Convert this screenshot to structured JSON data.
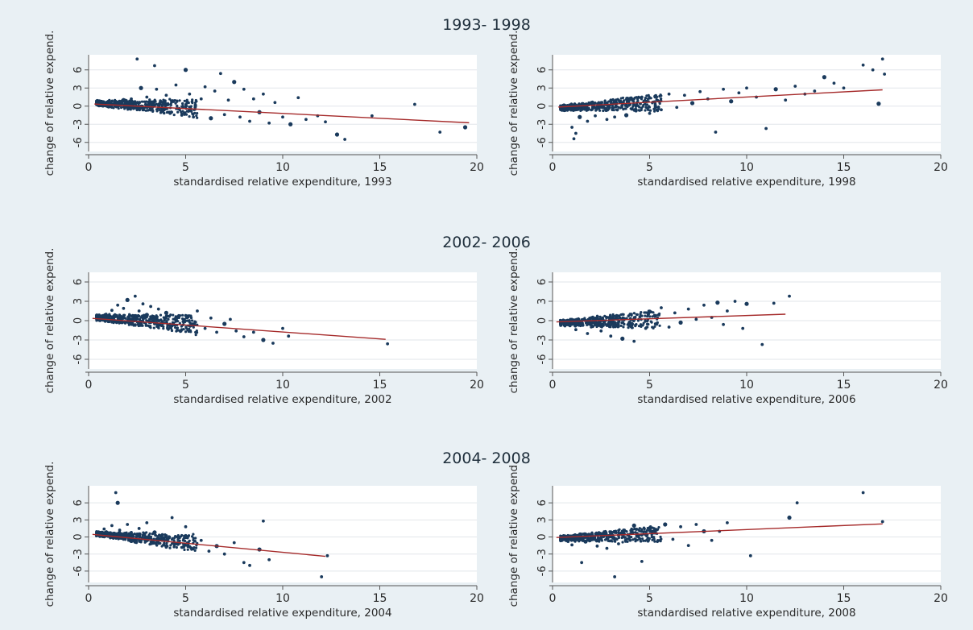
{
  "figure": {
    "background": "#e9f0f4",
    "plot_background": "#ffffff",
    "marker_color": "#1a3a5c",
    "fit_color": "#a52a2a",
    "grid_color": "#e2e6ea"
  },
  "rows": [
    {
      "title": "1993- 1998"
    },
    {
      "title": "2002- 2006"
    },
    {
      "title": "2004- 2008"
    }
  ],
  "chart_data": [
    {
      "type": "scatter",
      "title": "",
      "xlabel": "standardised relative expenditure, 1993",
      "ylabel": "change of relative expend.",
      "xlim": [
        0,
        20
      ],
      "ylim": [
        -7.5,
        8.5
      ],
      "xticks": [
        0,
        5,
        10,
        15,
        20
      ],
      "yticks": [
        6,
        3,
        0,
        -3,
        -6
      ],
      "grid": "horizontal",
      "fit_line": {
        "x": [
          0.3,
          19.6
        ],
        "y": [
          0.35,
          -2.75
        ]
      },
      "points": [
        [
          0.5,
          0.4
        ],
        [
          0.8,
          0.6
        ],
        [
          1.0,
          0.3
        ],
        [
          1.2,
          0.8
        ],
        [
          1.5,
          0.5
        ],
        [
          1.8,
          1.0
        ],
        [
          2.0,
          0.2
        ],
        [
          2.2,
          1.2
        ],
        [
          2.4,
          -0.3
        ],
        [
          2.5,
          7.8
        ],
        [
          2.7,
          3.0
        ],
        [
          3.0,
          1.5
        ],
        [
          3.2,
          -0.6
        ],
        [
          3.4,
          6.7
        ],
        [
          3.5,
          2.8
        ],
        [
          3.8,
          -0.8
        ],
        [
          4.0,
          1.8
        ],
        [
          4.2,
          -1.2
        ],
        [
          4.5,
          3.5
        ],
        [
          4.8,
          -1.5
        ],
        [
          5.0,
          6.0
        ],
        [
          5.2,
          2.0
        ],
        [
          5.4,
          -1.8
        ],
        [
          5.8,
          1.2
        ],
        [
          6.0,
          3.2
        ],
        [
          6.3,
          -2.0
        ],
        [
          6.5,
          2.5
        ],
        [
          6.8,
          5.4
        ],
        [
          7.0,
          -1.4
        ],
        [
          7.2,
          1.0
        ],
        [
          7.5,
          4.0
        ],
        [
          7.8,
          -1.8
        ],
        [
          8.0,
          2.8
        ],
        [
          8.3,
          -2.5
        ],
        [
          8.5,
          1.2
        ],
        [
          8.8,
          -1.0
        ],
        [
          9.0,
          2.0
        ],
        [
          9.3,
          -2.8
        ],
        [
          9.6,
          0.6
        ],
        [
          10.0,
          -1.8
        ],
        [
          10.4,
          -3.0
        ],
        [
          10.8,
          1.4
        ],
        [
          11.2,
          -2.2
        ],
        [
          11.8,
          -1.6
        ],
        [
          12.2,
          -2.6
        ],
        [
          12.8,
          -4.7
        ],
        [
          13.2,
          -5.5
        ],
        [
          14.6,
          -1.6
        ],
        [
          16.8,
          0.3
        ],
        [
          18.1,
          -4.3
        ],
        [
          19.4,
          -3.5
        ]
      ]
    },
    {
      "type": "scatter",
      "title": "",
      "xlabel": "standardised relative expenditure, 1998",
      "ylabel": "change of relative expend.",
      "xlim": [
        0,
        20
      ],
      "ylim": [
        -7.5,
        8.5
      ],
      "xticks": [
        0,
        5,
        10,
        15,
        20
      ],
      "yticks": [
        6,
        3,
        0,
        -3,
        -6
      ],
      "grid": "horizontal",
      "fit_line": {
        "x": [
          0.3,
          17.0
        ],
        "y": [
          -0.15,
          2.7
        ]
      },
      "points": [
        [
          0.6,
          -0.2
        ],
        [
          0.9,
          -0.5
        ],
        [
          1.0,
          -3.5
        ],
        [
          1.1,
          -5.4
        ],
        [
          1.2,
          -4.5
        ],
        [
          1.4,
          -1.8
        ],
        [
          1.6,
          0.3
        ],
        [
          1.8,
          -2.5
        ],
        [
          2.0,
          0.4
        ],
        [
          2.2,
          -1.6
        ],
        [
          2.5,
          0.5
        ],
        [
          2.8,
          -2.2
        ],
        [
          3.0,
          1.0
        ],
        [
          3.2,
          -1.8
        ],
        [
          3.5,
          0.8
        ],
        [
          3.8,
          -1.5
        ],
        [
          4.0,
          1.2
        ],
        [
          4.3,
          -0.8
        ],
        [
          4.6,
          1.5
        ],
        [
          5.0,
          -1.2
        ],
        [
          5.3,
          1.6
        ],
        [
          5.6,
          -0.6
        ],
        [
          6.0,
          2.0
        ],
        [
          6.4,
          -0.2
        ],
        [
          6.8,
          1.8
        ],
        [
          7.2,
          0.5
        ],
        [
          7.6,
          2.4
        ],
        [
          8.0,
          1.2
        ],
        [
          8.4,
          -4.3
        ],
        [
          8.8,
          2.8
        ],
        [
          9.2,
          0.8
        ],
        [
          9.6,
          2.2
        ],
        [
          10.0,
          3.0
        ],
        [
          10.5,
          1.5
        ],
        [
          11.0,
          -3.7
        ],
        [
          11.5,
          2.8
        ],
        [
          12.0,
          1.0
        ],
        [
          12.5,
          3.3
        ],
        [
          13.0,
          2.0
        ],
        [
          13.5,
          2.5
        ],
        [
          14.0,
          4.8
        ],
        [
          14.5,
          3.8
        ],
        [
          15.0,
          3.0
        ],
        [
          16.0,
          6.8
        ],
        [
          16.5,
          6.0
        ],
        [
          16.8,
          0.4
        ],
        [
          17.0,
          7.8
        ],
        [
          17.1,
          5.3
        ]
      ]
    },
    {
      "type": "scatter",
      "title": "",
      "xlabel": "standardised relative expenditure, 2002",
      "ylabel": "change of relative expend.",
      "xlim": [
        0,
        20
      ],
      "ylim": [
        -7.5,
        7.5
      ],
      "xticks": [
        0,
        5,
        10,
        15,
        20
      ],
      "yticks": [
        6,
        3,
        0,
        -3,
        -6
      ],
      "grid": "horizontal",
      "fit_line": {
        "x": [
          0.2,
          15.3
        ],
        "y": [
          0.35,
          -2.9
        ]
      },
      "points": [
        [
          0.6,
          0.5
        ],
        [
          0.9,
          1.0
        ],
        [
          1.2,
          1.6
        ],
        [
          1.5,
          2.4
        ],
        [
          1.8,
          1.9
        ],
        [
          2.0,
          3.2
        ],
        [
          2.2,
          0.2
        ],
        [
          2.4,
          3.8
        ],
        [
          2.6,
          1.5
        ],
        [
          2.8,
          2.6
        ],
        [
          3.0,
          0.9
        ],
        [
          3.2,
          2.2
        ],
        [
          3.4,
          -0.5
        ],
        [
          3.6,
          1.8
        ],
        [
          3.8,
          -0.2
        ],
        [
          4.0,
          1.2
        ],
        [
          4.2,
          -1.0
        ],
        [
          4.5,
          0.6
        ],
        [
          4.8,
          -1.4
        ],
        [
          5.0,
          0.8
        ],
        [
          5.3,
          -0.6
        ],
        [
          5.6,
          1.5
        ],
        [
          6.0,
          -1.2
        ],
        [
          6.3,
          0.4
        ],
        [
          6.6,
          -1.8
        ],
        [
          7.0,
          -0.5
        ],
        [
          7.3,
          0.2
        ],
        [
          7.6,
          -1.6
        ],
        [
          8.0,
          -2.5
        ],
        [
          8.5,
          -1.8
        ],
        [
          9.0,
          -3.0
        ],
        [
          9.5,
          -3.5
        ],
        [
          10.0,
          -1.2
        ],
        [
          10.3,
          -2.4
        ],
        [
          15.4,
          -3.6
        ]
      ]
    },
    {
      "type": "scatter",
      "title": "",
      "xlabel": "standardised relative expenditure, 2006",
      "ylabel": "change of relative expend.",
      "xlim": [
        0,
        20
      ],
      "ylim": [
        -7.5,
        7.5
      ],
      "xticks": [
        0,
        5,
        10,
        15,
        20
      ],
      "yticks": [
        6,
        3,
        0,
        -3,
        -6
      ],
      "grid": "horizontal",
      "fit_line": {
        "x": [
          0.2,
          12.0
        ],
        "y": [
          -0.2,
          1.0
        ]
      },
      "points": [
        [
          0.5,
          -0.2
        ],
        [
          0.9,
          -0.8
        ],
        [
          1.2,
          -1.4
        ],
        [
          1.5,
          -0.3
        ],
        [
          1.8,
          -2.0
        ],
        [
          2.2,
          0.3
        ],
        [
          2.5,
          -1.6
        ],
        [
          2.8,
          0.5
        ],
        [
          3.0,
          -2.4
        ],
        [
          3.3,
          0.8
        ],
        [
          3.6,
          -2.8
        ],
        [
          4.0,
          1.0
        ],
        [
          4.2,
          -3.2
        ],
        [
          4.5,
          0.6
        ],
        [
          4.8,
          -1.2
        ],
        [
          5.0,
          1.4
        ],
        [
          5.3,
          -0.5
        ],
        [
          5.6,
          2.0
        ],
        [
          6.0,
          -1.0
        ],
        [
          6.3,
          1.2
        ],
        [
          6.6,
          -0.3
        ],
        [
          7.0,
          1.8
        ],
        [
          7.4,
          0.2
        ],
        [
          7.8,
          2.4
        ],
        [
          8.2,
          0.5
        ],
        [
          8.5,
          2.8
        ],
        [
          8.8,
          -0.6
        ],
        [
          9.0,
          1.5
        ],
        [
          9.4,
          3.0
        ],
        [
          9.8,
          -1.2
        ],
        [
          10.0,
          2.6
        ],
        [
          10.8,
          -3.7
        ],
        [
          11.4,
          2.7
        ],
        [
          12.2,
          3.8
        ]
      ]
    },
    {
      "type": "scatter",
      "title": "",
      "xlabel": "standardised relative expenditure, 2004",
      "ylabel": "change of relative expend.",
      "xlim": [
        0,
        20
      ],
      "ylim": [
        -8.0,
        9.0
      ],
      "xticks": [
        0,
        5,
        10,
        15,
        20
      ],
      "yticks": [
        6,
        3,
        0,
        -3,
        -6
      ],
      "grid": "horizontal",
      "fit_line": {
        "x": [
          0.2,
          12.2
        ],
        "y": [
          0.45,
          -3.4
        ]
      },
      "points": [
        [
          0.5,
          0.8
        ],
        [
          0.8,
          1.4
        ],
        [
          1.0,
          0.5
        ],
        [
          1.2,
          2.0
        ],
        [
          1.4,
          7.8
        ],
        [
          1.5,
          6.0
        ],
        [
          1.6,
          1.2
        ],
        [
          1.8,
          -0.4
        ],
        [
          2.0,
          2.2
        ],
        [
          2.2,
          0.8
        ],
        [
          2.4,
          -0.8
        ],
        [
          2.6,
          1.5
        ],
        [
          2.8,
          -0.3
        ],
        [
          3.0,
          2.5
        ],
        [
          3.2,
          -1.2
        ],
        [
          3.4,
          0.8
        ],
        [
          3.6,
          -1.0
        ],
        [
          3.8,
          0.4
        ],
        [
          4.0,
          -1.8
        ],
        [
          4.3,
          3.4
        ],
        [
          4.6,
          -1.2
        ],
        [
          5.0,
          1.8
        ],
        [
          5.3,
          -2.0
        ],
        [
          5.8,
          -0.6
        ],
        [
          6.2,
          -2.5
        ],
        [
          6.6,
          -1.6
        ],
        [
          7.0,
          -3.0
        ],
        [
          7.5,
          -1.0
        ],
        [
          8.0,
          -4.5
        ],
        [
          8.3,
          -5.0
        ],
        [
          8.8,
          -2.2
        ],
        [
          9.0,
          2.8
        ],
        [
          9.3,
          -4.0
        ],
        [
          12.0,
          -7.0
        ],
        [
          12.3,
          -3.3
        ]
      ]
    },
    {
      "type": "scatter",
      "title": "",
      "xlabel": "standardised relative expenditure, 2008",
      "ylabel": "change of relative expend.",
      "xlim": [
        0,
        20
      ],
      "ylim": [
        -8.0,
        9.0
      ],
      "xticks": [
        0,
        5,
        10,
        15,
        20
      ],
      "yticks": [
        6,
        3,
        0,
        -3,
        -6
      ],
      "grid": "horizontal",
      "fit_line": {
        "x": [
          0.2,
          17.0
        ],
        "y": [
          -0.1,
          2.3
        ]
      },
      "points": [
        [
          0.5,
          -0.2
        ],
        [
          0.8,
          -0.8
        ],
        [
          1.0,
          -1.4
        ],
        [
          1.3,
          -0.4
        ],
        [
          1.5,
          -4.5
        ],
        [
          1.7,
          -0.8
        ],
        [
          2.0,
          0.4
        ],
        [
          2.3,
          -1.6
        ],
        [
          2.6,
          0.6
        ],
        [
          2.8,
          -2.0
        ],
        [
          3.0,
          0.8
        ],
        [
          3.2,
          -7.0
        ],
        [
          3.4,
          -1.2
        ],
        [
          3.7,
          1.2
        ],
        [
          4.0,
          -0.6
        ],
        [
          4.2,
          2.0
        ],
        [
          4.6,
          -4.3
        ],
        [
          4.8,
          0.4
        ],
        [
          5.0,
          1.6
        ],
        [
          5.4,
          -0.8
        ],
        [
          5.8,
          2.2
        ],
        [
          6.2,
          -0.4
        ],
        [
          6.6,
          1.8
        ],
        [
          7.0,
          -1.5
        ],
        [
          7.4,
          2.2
        ],
        [
          7.8,
          1.0
        ],
        [
          8.2,
          -0.6
        ],
        [
          8.6,
          1.0
        ],
        [
          9.0,
          2.5
        ],
        [
          10.2,
          -3.3
        ],
        [
          12.2,
          3.4
        ],
        [
          12.6,
          6.0
        ],
        [
          16.0,
          7.8
        ],
        [
          17.0,
          2.7
        ]
      ]
    }
  ]
}
